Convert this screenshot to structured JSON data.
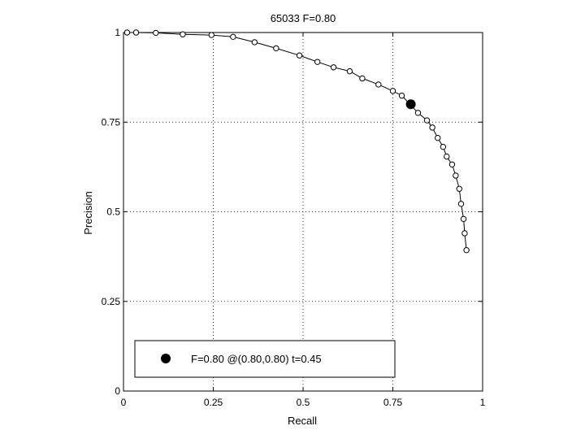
{
  "chart_data": {
    "type": "line",
    "title": "65033 F=0.80",
    "xlabel": "Recall",
    "ylabel": "Precision",
    "xlim": [
      0,
      1
    ],
    "ylim": [
      0,
      1
    ],
    "grid": true,
    "grid_style": "dotted",
    "x_ticks": [
      "0",
      "0.25",
      "0.5",
      "0.75",
      "1"
    ],
    "y_ticks": [
      "0",
      "0.25",
      "0.5",
      "0.75",
      "1"
    ],
    "x_tick_values": [
      0,
      0.25,
      0.5,
      0.75,
      1
    ],
    "y_tick_values": [
      0,
      0.25,
      0.5,
      0.75,
      1
    ],
    "series": [
      {
        "x": [
          0.01,
          0.035,
          0.09,
          0.165,
          0.245,
          0.305,
          0.365,
          0.425,
          0.49,
          0.54,
          0.585,
          0.63,
          0.665,
          0.71,
          0.75,
          0.775,
          0.82,
          0.845,
          0.86,
          0.875,
          0.89,
          0.9,
          0.915,
          0.925,
          0.935,
          0.94,
          0.947,
          0.95,
          0.955
        ],
        "y": [
          1.0,
          1.0,
          0.999,
          0.995,
          0.993,
          0.988,
          0.973,
          0.956,
          0.936,
          0.918,
          0.903,
          0.892,
          0.872,
          0.855,
          0.837,
          0.824,
          0.776,
          0.755,
          0.735,
          0.706,
          0.681,
          0.654,
          0.632,
          0.601,
          0.564,
          0.522,
          0.48,
          0.44,
          0.393
        ],
        "marker": "open-circle",
        "color": "#000000"
      }
    ],
    "highlight_point": {
      "x": 0.8,
      "y": 0.8,
      "marker": "filled-circle",
      "color": "#000000"
    },
    "legend": {
      "position": "bottom-left",
      "entries": [
        {
          "label": "F=0.80 @(0.80,0.80) t=0.45",
          "marker": "filled-circle"
        }
      ]
    }
  }
}
